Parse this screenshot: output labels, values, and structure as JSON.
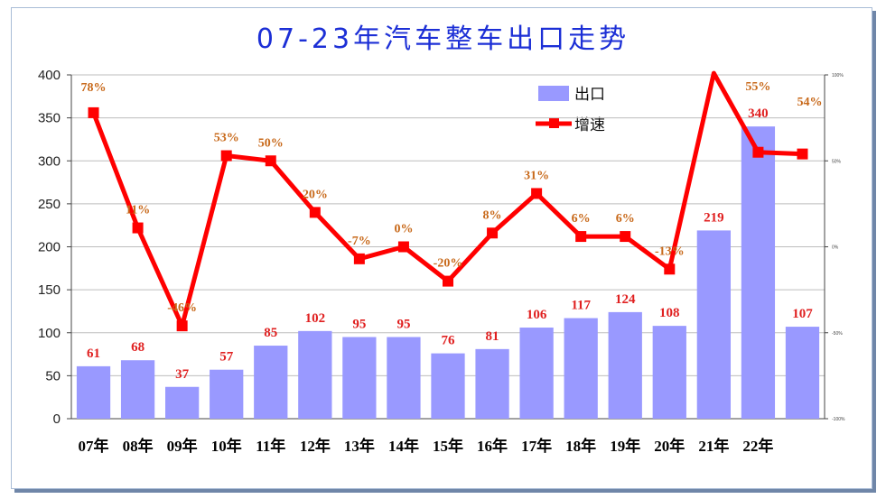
{
  "title": "07-23年汽车整车出口走势",
  "chart_data": {
    "type": "bar",
    "categories": [
      "07年",
      "08年",
      "09年",
      "10年",
      "11年",
      "12年",
      "13年",
      "14年",
      "15年",
      "16年",
      "17年",
      "18年",
      "19年",
      "20年",
      "21年",
      "22年",
      ""
    ],
    "series": [
      {
        "name": "出口",
        "type": "bar",
        "axis": "left",
        "color": "#9999ff",
        "values": [
          61,
          68,
          37,
          57,
          85,
          102,
          95,
          95,
          76,
          81,
          106,
          117,
          124,
          108,
          219,
          340,
          107
        ],
        "labels": [
          "61",
          "68",
          "37",
          "57",
          "85",
          "102",
          "95",
          "95",
          "76",
          "81",
          "106",
          "117",
          "124",
          "108",
          "219",
          "340",
          "107"
        ]
      },
      {
        "name": "增速",
        "type": "line",
        "axis": "right",
        "color": "#ff0000",
        "values": [
          78,
          11,
          -46,
          53,
          50,
          20,
          -7,
          0,
          -20,
          8,
          31,
          6,
          6,
          -13,
          101,
          55,
          54
        ],
        "labels": [
          "78%",
          "11%",
          "-46%",
          "53%",
          "50%",
          "20%",
          "-7%",
          "0%",
          "-20%",
          "8%",
          "31%",
          "6%",
          "6%",
          "-13%",
          "",
          "55%",
          "54%"
        ]
      }
    ],
    "y_left": {
      "ylim": [
        0,
        400
      ],
      "ticks": [
        "0",
        "50",
        "100",
        "150",
        "200",
        "250",
        "300",
        "350",
        "400"
      ]
    },
    "y_right": {
      "ylim": [
        -100,
        100
      ],
      "ticks": [
        "-100%",
        "-50%",
        "0%",
        "50%",
        "100%"
      ]
    },
    "grid": true,
    "legend_position": "top-right"
  },
  "colors": {
    "title": "#1c2fd6",
    "bar": "#9999ff",
    "line": "#ff0000",
    "bar_label": "#e02020",
    "rate_label": "#c8691a"
  }
}
